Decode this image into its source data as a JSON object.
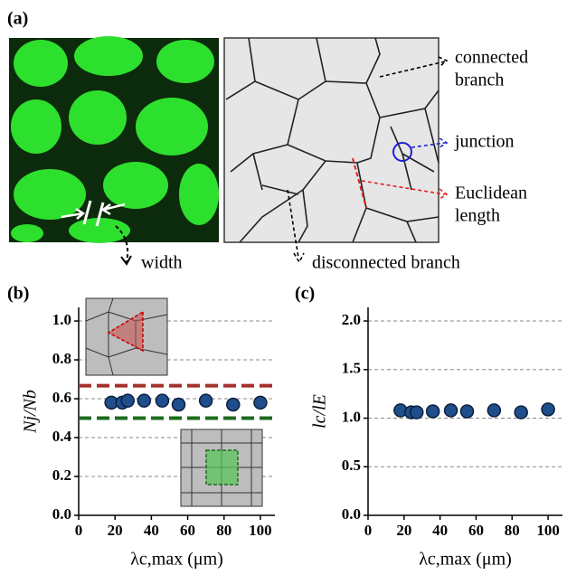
{
  "panel_labels": [
    "(a)",
    "(b)",
    "(c)"
  ],
  "annotations": {
    "width": "width",
    "connected": [
      "connected",
      "branch"
    ],
    "junction": "junction",
    "euclidean": [
      "Euclidean",
      "length"
    ],
    "disconnected": "disconnected branch"
  },
  "chart_data": [
    {
      "type": "scatter",
      "y_label": "Nj/Nb",
      "x_label": "λc,max (μm)",
      "x": [
        18,
        24,
        27,
        36,
        46,
        55,
        70,
        85,
        100
      ],
      "series": [
        {
          "color": "#1f4e8c",
          "values": [
            0.58,
            0.58,
            0.59,
            0.59,
            0.59,
            0.57,
            0.59,
            0.57,
            0.58
          ]
        }
      ],
      "reference_lines": [
        {
          "value": 0.667,
          "color": "#a3302c"
        },
        {
          "value": 0.5,
          "color": "#1e6b1e"
        }
      ],
      "xlim": [
        0,
        108
      ],
      "xticks": [
        0,
        20,
        40,
        60,
        80,
        100
      ],
      "ylim": [
        0,
        1.07
      ],
      "yticks": [
        {
          "value": 0,
          "label": "0.0"
        },
        {
          "value": 0.2,
          "label": "0.2"
        },
        {
          "value": 0.4,
          "label": "0.4"
        },
        {
          "value": 0.6,
          "label": "0.6"
        },
        {
          "value": 0.8,
          "label": "0.8"
        },
        {
          "value": 1,
          "label": "1.0"
        }
      ],
      "grid": true
    },
    {
      "type": "scatter",
      "y_label": "lc/lE",
      "x_label": "λc,max (μm)",
      "x": [
        18,
        24,
        27,
        36,
        46,
        55,
        70,
        85,
        100
      ],
      "series": [
        {
          "color": "#1f4e8c",
          "values": [
            1.08,
            1.06,
            1.06,
            1.07,
            1.08,
            1.07,
            1.08,
            1.06,
            1.09
          ]
        }
      ],
      "xlim": [
        0,
        108
      ],
      "xticks": [
        0,
        20,
        40,
        60,
        80,
        100
      ],
      "ylim": [
        0,
        2.14
      ],
      "yticks": [
        {
          "value": 0,
          "label": "0.0"
        },
        {
          "value": 0.5,
          "label": "0.5"
        },
        {
          "value": 1,
          "label": "1.0"
        },
        {
          "value": 1.5,
          "label": "1.5"
        },
        {
          "value": 2,
          "label": "2.0"
        }
      ],
      "grid": true
    }
  ]
}
